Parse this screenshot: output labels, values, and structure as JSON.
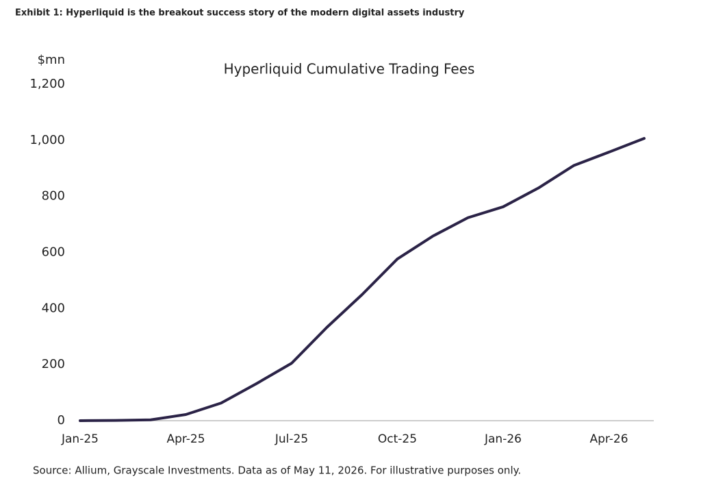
{
  "header": "Exhibit 1: Hyperliquid is the breakout success story of the modern digital assets industry",
  "chart_data": {
    "type": "line",
    "title": "Hyperliquid Cumulative Trading Fees",
    "y_label": "$mn",
    "categories": [
      "Jan-25",
      null,
      null,
      "Apr-25",
      null,
      null,
      "Jul-25",
      null,
      null,
      "Oct-25",
      null,
      null,
      "Jan-26",
      null,
      null,
      "Apr-26",
      null
    ],
    "values": [
      0,
      1,
      3,
      22,
      63,
      132,
      205,
      333,
      450,
      577,
      658,
      724,
      763,
      830,
      910,
      958,
      1007
    ],
    "color": "#2b2347",
    "ylim": [
      0,
      1200
    ],
    "yticks": [
      0,
      200,
      400,
      600,
      800,
      {
        "value": 1000,
        "label": "1,000"
      },
      {
        "value": 1200,
        "label": "1,200"
      }
    ],
    "grid": false
  },
  "source": "Source: Allium, Grayscale Investments. Data as of May 11, 2026. For illustrative purposes only."
}
